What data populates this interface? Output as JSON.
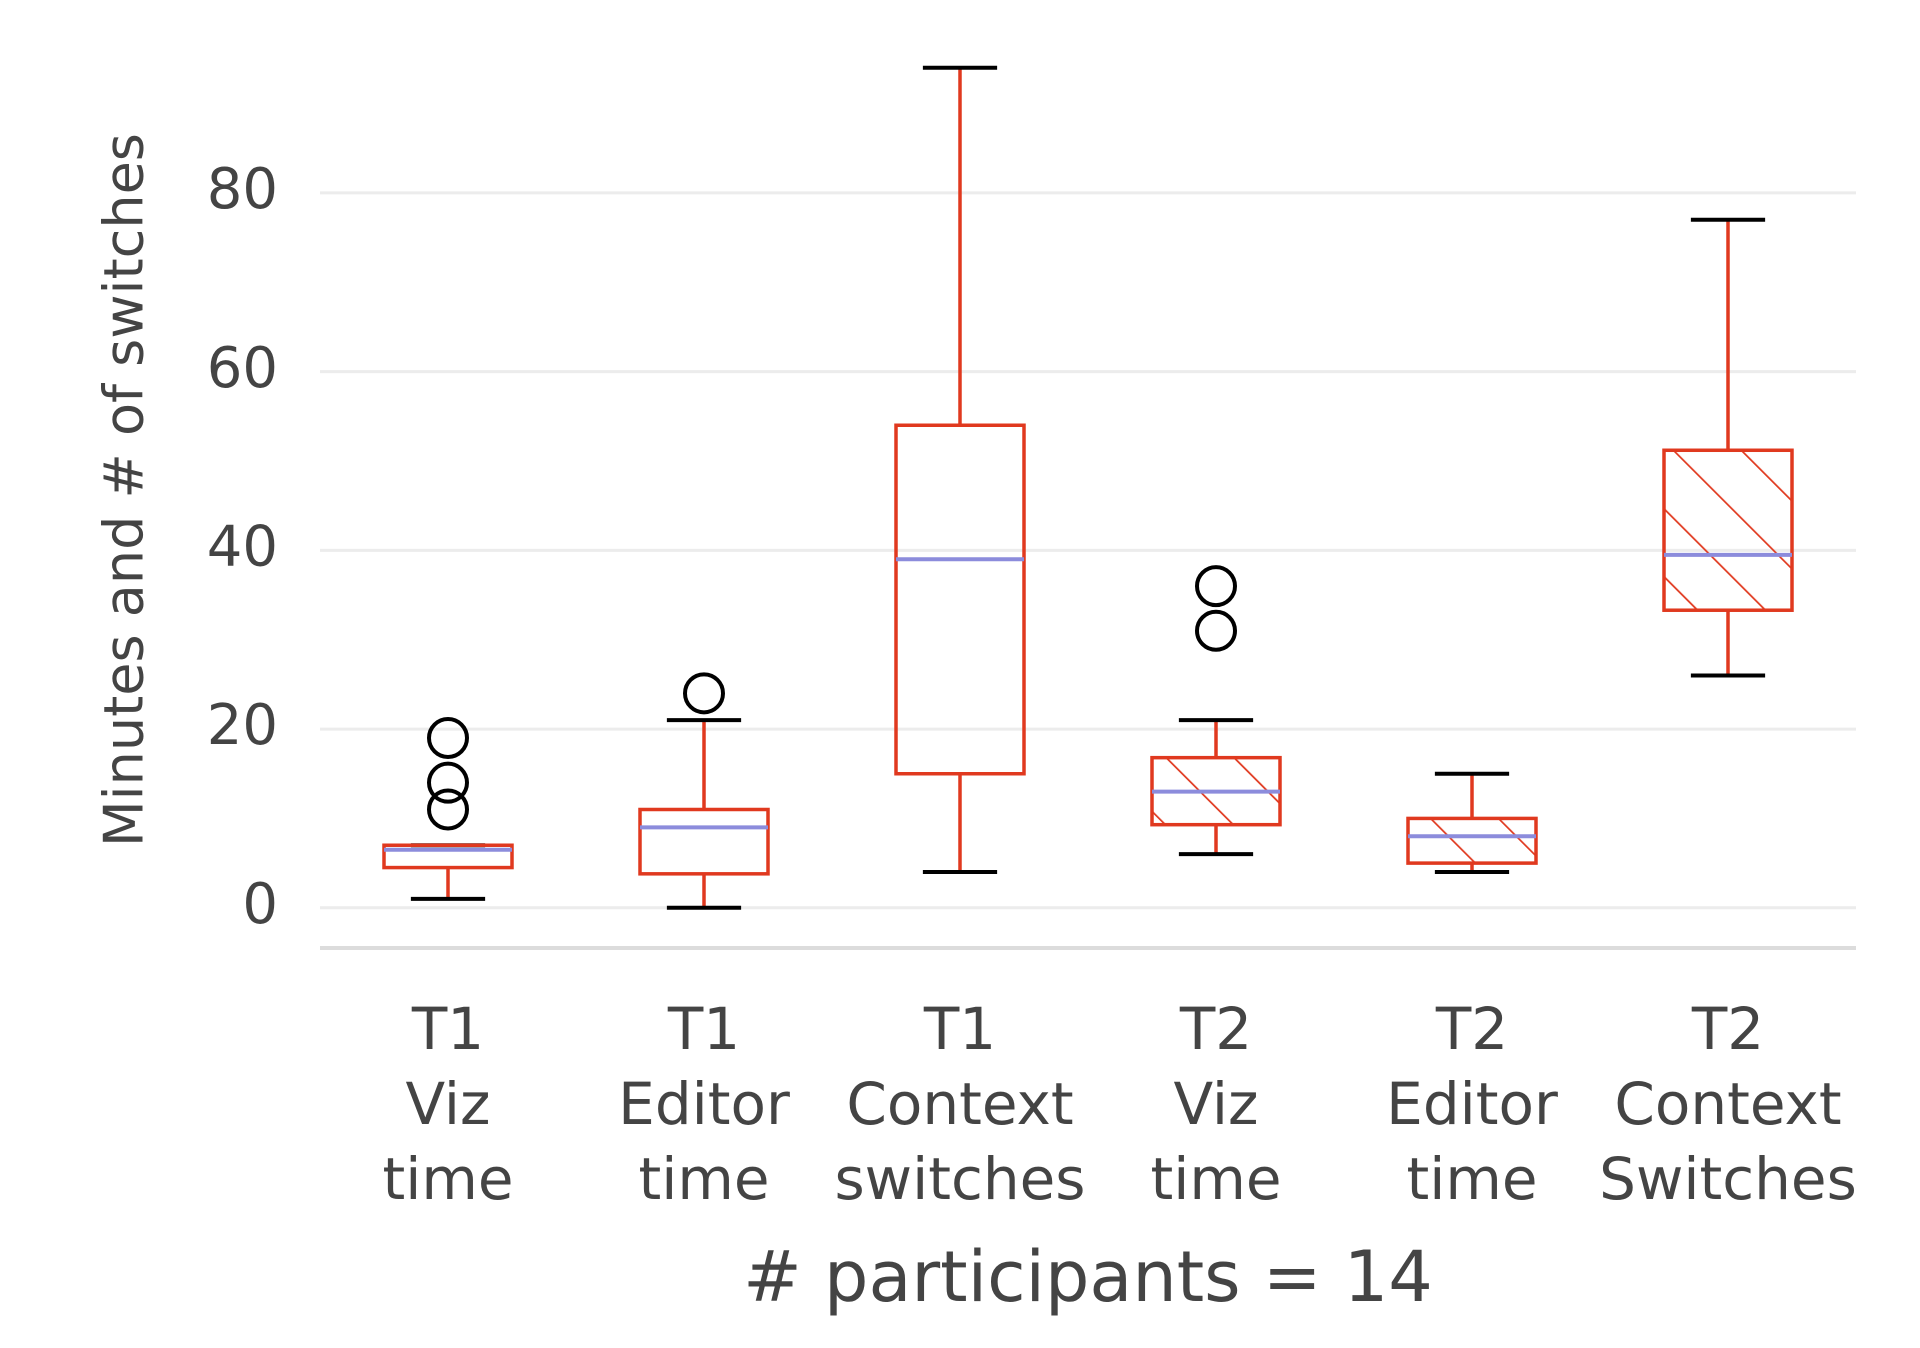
{
  "chart_data": {
    "type": "box",
    "ylabel": "Minutes and # of switches",
    "xlabel": "# participants = 14",
    "categories": [
      [
        "T1",
        "Viz",
        "time"
      ],
      [
        "T1",
        "Editor",
        "time"
      ],
      [
        "T1",
        "Context",
        "switches"
      ],
      [
        "T2",
        "Viz",
        "time"
      ],
      [
        "T2",
        "Editor",
        "time"
      ],
      [
        "T2",
        "Context",
        "Switches"
      ]
    ],
    "boxes": [
      {
        "whislo": 1,
        "q1": 4.5,
        "med": 6.5,
        "q3": 7,
        "whishi": 7,
        "fliers": [
          11,
          14,
          19
        ],
        "hatch": false
      },
      {
        "whislo": 0,
        "q1": 3.8,
        "med": 9,
        "q3": 11,
        "whishi": 21,
        "fliers": [
          24
        ],
        "hatch": false
      },
      {
        "whislo": 4,
        "q1": 15,
        "med": 39,
        "q3": 54,
        "whishi": 94,
        "fliers": [],
        "hatch": false
      },
      {
        "whislo": 6,
        "q1": 9.3,
        "med": 13,
        "q3": 16.8,
        "whishi": 21,
        "fliers": [
          31,
          36
        ],
        "hatch": true
      },
      {
        "whislo": 4,
        "q1": 5,
        "med": 8,
        "q3": 10,
        "whishi": 15,
        "fliers": [],
        "hatch": true
      },
      {
        "whislo": 26,
        "q1": 33.3,
        "med": 39.5,
        "q3": 51.2,
        "whishi": 77,
        "fliers": [],
        "hatch": true
      }
    ],
    "box_color": "#e0391f",
    "median_color": "#8c8cdc",
    "cap_color": "#000000",
    "ylim": [
      -4.5,
      97
    ],
    "yticks": [
      0,
      20,
      40,
      60,
      80
    ],
    "grid": true
  }
}
